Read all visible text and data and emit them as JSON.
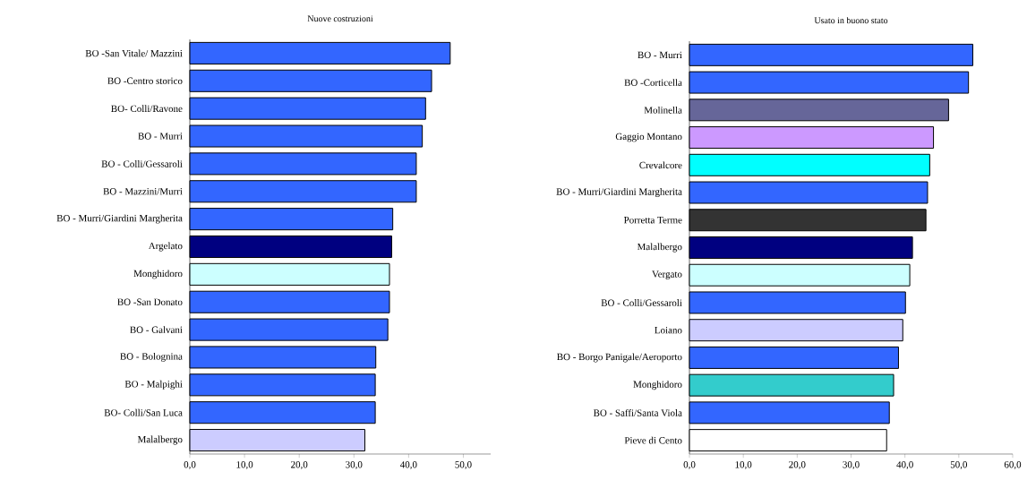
{
  "chart_data": [
    {
      "type": "bar",
      "orientation": "horizontal",
      "title": "Nuove costruzioni",
      "categories": [
        "BO -San Vitale/ Mazzini",
        "BO -Centro storico",
        "BO- Colli/Ravone",
        "BO - Murri",
        "BO - Colli/Gessaroli",
        "BO - Mazzini/Murri",
        "BO - Murri/Giardini Margherita",
        "Argelato",
        "Monghidoro",
        "BO -San Donato",
        "BO - Galvani",
        "BO - Bolognina",
        "BO - Malpighi",
        "BO-  Colli/San Luca",
        "Malalbergo"
      ],
      "values": [
        47.6,
        44.2,
        43.1,
        42.5,
        41.4,
        41.4,
        37.1,
        36.9,
        36.5,
        36.5,
        36.2,
        34.0,
        33.9,
        33.9,
        32.0
      ],
      "colors": [
        "#3366ff",
        "#3366ff",
        "#3366ff",
        "#3366ff",
        "#3366ff",
        "#3366ff",
        "#3366ff",
        "#000080",
        "#ccffff",
        "#3366ff",
        "#3366ff",
        "#3366ff",
        "#3366ff",
        "#3366ff",
        "#ccccff"
      ],
      "xlim": [
        0,
        55
      ],
      "xticks": [
        {
          "value": 0,
          "label": "0,0"
        },
        {
          "value": 10,
          "label": "10,0"
        },
        {
          "value": 20,
          "label": "20,0"
        },
        {
          "value": 30,
          "label": "30,0"
        },
        {
          "value": 40,
          "label": "40,0"
        },
        {
          "value": 50,
          "label": "50,0"
        }
      ]
    },
    {
      "type": "bar",
      "orientation": "horizontal",
      "title": "Usato in buono stato",
      "categories": [
        "BO - Murri",
        "BO -Corticella",
        "Molinella",
        "Gaggio Montano",
        "Crevalcore",
        "BO - Murri/Giardini Margherita",
        "Porretta Terme",
        "Malalbergo",
        "Vergato",
        "BO - Colli/Gessaroli",
        "Loiano",
        "BO - Borgo Panigale/Aeroporto",
        "Monghidoro",
        "BO - Saffi/Santa Viola",
        "Pieve di Cento"
      ],
      "values": [
        52.6,
        51.8,
        48.1,
        45.3,
        44.6,
        44.2,
        43.9,
        41.4,
        40.9,
        40.1,
        39.6,
        38.8,
        37.9,
        37.1,
        36.6
      ],
      "colors": [
        "#3366ff",
        "#3366ff",
        "#666699",
        "#cc99ff",
        "#00ffff",
        "#3366ff",
        "#333333",
        "#000080",
        "#ccffff",
        "#3366ff",
        "#ccccff",
        "#3366ff",
        "#33cccc",
        "#3366ff",
        "#ffffff"
      ],
      "xlim": [
        0,
        60
      ],
      "xticks": [
        {
          "value": 0,
          "label": "0,0"
        },
        {
          "value": 10,
          "label": "10,0"
        },
        {
          "value": 20,
          "label": "20,0"
        },
        {
          "value": 30,
          "label": "30,0"
        },
        {
          "value": 40,
          "label": "40,0"
        },
        {
          "value": 50,
          "label": "50,0"
        },
        {
          "value": 60,
          "label": "60,0"
        }
      ]
    }
  ]
}
